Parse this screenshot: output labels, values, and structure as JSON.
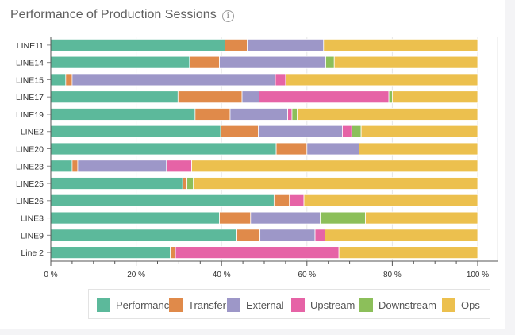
{
  "title": "Performance of Production Sessions",
  "info_icon": "info-circle-icon",
  "colors": {
    "Performance": "#5cb99b",
    "Transfer": "#e08a4a",
    "External": "#9d97c8",
    "Upstream": "#e663a6",
    "Downstream": "#8cbf5a",
    "Ops": "#ecc04e"
  },
  "chart_data": {
    "type": "bar",
    "orientation": "horizontal",
    "stacked": true,
    "categories": [
      "LINE11",
      "LINE14",
      "LINE15",
      "LINE17",
      "LINE19",
      "LINE2",
      "LINE20",
      "LINE23",
      "LINE25",
      "LINE26",
      "LINE3",
      "LINE9",
      "Line 2"
    ],
    "series": [
      {
        "name": "Performance",
        "values": [
          40.8,
          32.5,
          3.5,
          29.8,
          33.8,
          39.8,
          52.8,
          5.0,
          30.9,
          52.3,
          39.5,
          43.6,
          28.0
        ]
      },
      {
        "name": "Transfer",
        "values": [
          5.2,
          7.0,
          1.5,
          15.0,
          8.2,
          8.8,
          7.2,
          1.3,
          1.0,
          3.6,
          7.3,
          5.4,
          1.2
        ]
      },
      {
        "name": "External",
        "values": [
          17.9,
          24.9,
          47.6,
          4.0,
          13.5,
          19.7,
          12.2,
          20.8,
          0.0,
          0.0,
          16.3,
          12.9,
          0.0
        ]
      },
      {
        "name": "Upstream",
        "values": [
          0.0,
          0.0,
          2.4,
          30.4,
          1.0,
          2.2,
          0.0,
          5.9,
          0.0,
          3.4,
          0.0,
          2.3,
          38.3
        ]
      },
      {
        "name": "Downstream",
        "values": [
          0.0,
          2.0,
          0.0,
          0.8,
          1.2,
          2.2,
          0.0,
          0.0,
          1.5,
          0.0,
          10.6,
          0.0,
          0.0
        ]
      },
      {
        "name": "Ops",
        "values": [
          36.1,
          33.6,
          45.0,
          20.0,
          42.3,
          27.3,
          27.8,
          67.0,
          66.6,
          40.7,
          26.3,
          35.8,
          32.5
        ]
      }
    ],
    "x_ticks": [
      "0 %",
      "20 %",
      "40 %",
      "60 %",
      "80 %",
      "100 %"
    ],
    "xlim": [
      0,
      100
    ],
    "grid": true,
    "legend_position": "bottom"
  }
}
